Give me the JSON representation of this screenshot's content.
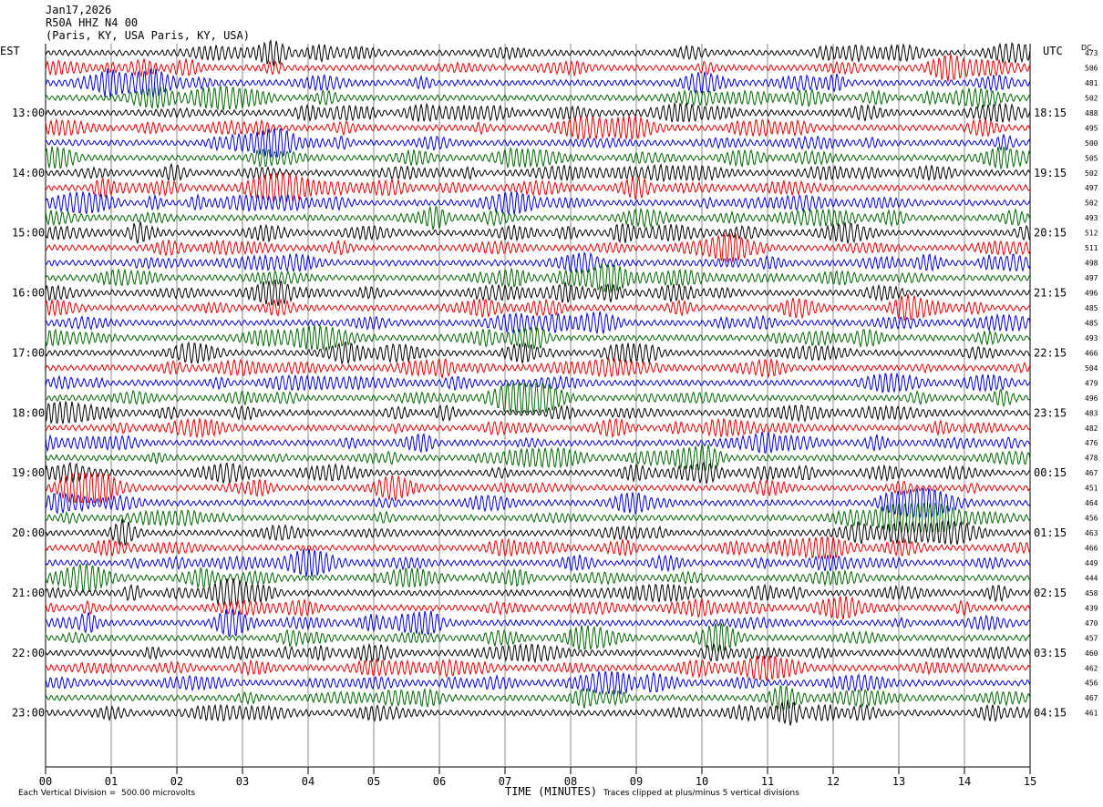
{
  "header": {
    "date": "Jan17,2026",
    "station": "R50A HHZ N4 00",
    "location": "(Paris, KY, USA Paris, KY, USA)"
  },
  "left_zone_label": "EST",
  "right_zone_label": "UTC",
  "dc_label": "DC",
  "footer": {
    "scale_note": "Each Vertical Division =  500.00 microvolts",
    "x_axis_title": "TIME (MINUTES)",
    "clip_note": "Traces clipped at plus/minus 5 vertical divisions"
  },
  "colors": {
    "cycle": [
      "#000000",
      "#dd0000",
      "#0000cc",
      "#006600"
    ],
    "grid": "#888888"
  },
  "chart_data": {
    "type": "line",
    "title": "R50A HHZ N4 00",
    "xlabel": "TIME (MINUTES)",
    "ylabel": "",
    "xlim": [
      0,
      15
    ],
    "x_ticks": [
      "00",
      "01",
      "02",
      "03",
      "04",
      "05",
      "06",
      "07",
      "08",
      "09",
      "10",
      "11",
      "12",
      "13",
      "14",
      "15"
    ],
    "left_hour_labels": [
      {
        "row": 4,
        "label": "13:00"
      },
      {
        "row": 8,
        "label": "14:00"
      },
      {
        "row": 12,
        "label": "15:00"
      },
      {
        "row": 16,
        "label": "16:00"
      },
      {
        "row": 20,
        "label": "17:00"
      },
      {
        "row": 24,
        "label": "18:00"
      },
      {
        "row": 28,
        "label": "19:00"
      },
      {
        "row": 32,
        "label": "20:00"
      },
      {
        "row": 36,
        "label": "21:00"
      },
      {
        "row": 40,
        "label": "22:00"
      },
      {
        "row": 44,
        "label": "23:00"
      }
    ],
    "right_hour_labels": [
      {
        "row": 4,
        "label": "18:15"
      },
      {
        "row": 8,
        "label": "19:15"
      },
      {
        "row": 12,
        "label": "20:15"
      },
      {
        "row": 16,
        "label": "21:15"
      },
      {
        "row": 20,
        "label": "22:15"
      },
      {
        "row": 24,
        "label": "23:15"
      },
      {
        "row": 28,
        "label": "00:15"
      },
      {
        "row": 32,
        "label": "01:15"
      },
      {
        "row": 36,
        "label": "02:15"
      },
      {
        "row": 40,
        "label": "03:15"
      },
      {
        "row": 44,
        "label": "04:15"
      }
    ],
    "dc_offsets": [
      473,
      506,
      481,
      502,
      488,
      495,
      500,
      505,
      502,
      497,
      502,
      493,
      512,
      511,
      498,
      497,
      496,
      485,
      485,
      493,
      466,
      504,
      479,
      496,
      483,
      482,
      476,
      478,
      467,
      451,
      464,
      456,
      463,
      466,
      449,
      444,
      458,
      439,
      470,
      457,
      460,
      462,
      456,
      467,
      461
    ],
    "trace_count": 45,
    "minutes_per_row": 15
  }
}
